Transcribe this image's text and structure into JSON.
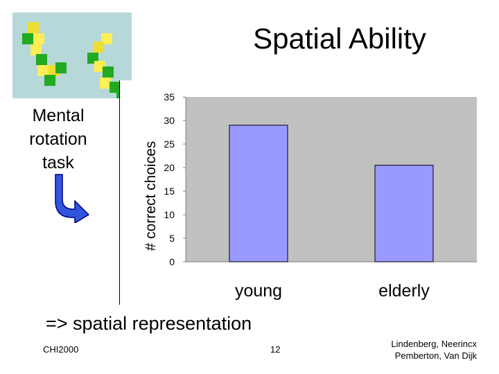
{
  "slide": {
    "title": "Spatial Ability",
    "side_label_lines": [
      "Mental",
      "rotation",
      "task"
    ],
    "conclusion": "=> spatial representation",
    "footer": {
      "left": "CHI2000",
      "page": "12",
      "authors": [
        "Lindenberg, Neerincx",
        "Pemberton, Van Dijk"
      ]
    },
    "icons": [
      "mental-rotation-cubes-image",
      "curved-arrow-icon"
    ],
    "colors": {
      "cube_panel_bg": "#b6d8d8",
      "arrow": "#3355dd"
    }
  },
  "chart_data": {
    "type": "bar",
    "categories": [
      "young",
      "elderly"
    ],
    "values": [
      29,
      20.5
    ],
    "ylabel": "# correct choices",
    "ylim": [
      0,
      35
    ],
    "yticks": [
      0,
      5,
      10,
      15,
      20,
      25,
      30,
      35
    ],
    "grid": false,
    "legend": "none",
    "colors": {
      "bar": "#9999ff",
      "bar_edge": "#000000",
      "plot_bg": "#c0c0c0"
    }
  }
}
